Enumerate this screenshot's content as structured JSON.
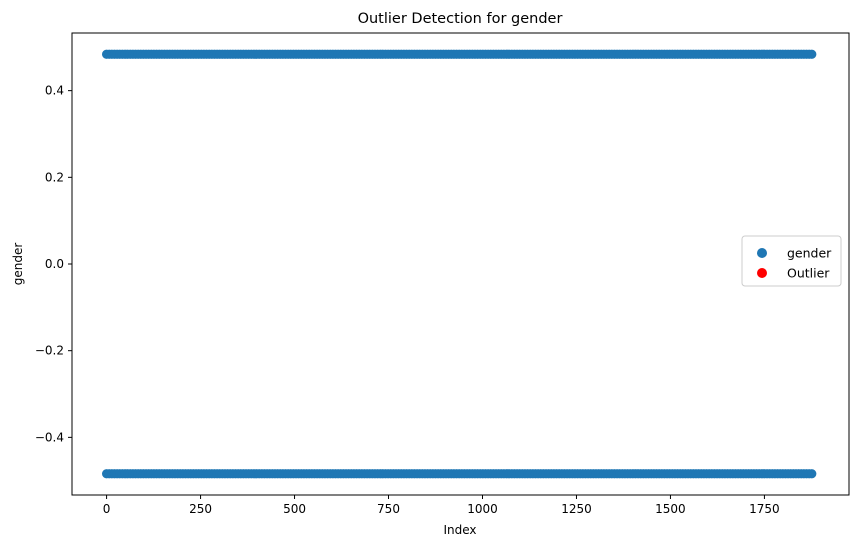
{
  "chart_data": {
    "type": "scatter",
    "title": "Outlier Detection for gender",
    "xlabel": "Index",
    "ylabel": "gender",
    "xlim": [
      -92,
      1975
    ],
    "ylim": [
      -0.533,
      0.533
    ],
    "xticks": [
      0,
      250,
      500,
      750,
      1000,
      1250,
      1500,
      1750
    ],
    "xtick_labels": [
      "0",
      "250",
      "500",
      "750",
      "1000",
      "1250",
      "1500",
      "1750"
    ],
    "yticks": [
      -0.4,
      -0.2,
      0.0,
      0.2,
      0.4
    ],
    "ytick_labels": [
      "−0.4",
      "−0.2",
      "0.0",
      "0.2",
      "0.4"
    ],
    "grid": false,
    "legend_position": "center-right",
    "series": [
      {
        "name": "gender",
        "color": "#1f77b4",
        "x_range": [
          0,
          1882
        ],
        "levels": [
          0.484,
          -0.484
        ],
        "description": "points at every index, each at one of two levels",
        "sample_points": [
          {
            "x": 0,
            "y": -0.484
          },
          {
            "x": 50,
            "y": 0.484
          },
          {
            "x": 100,
            "y": -0.484
          },
          {
            "x": 150,
            "y": 0.484
          },
          {
            "x": 250,
            "y": -0.484
          },
          {
            "x": 500,
            "y": 0.484
          },
          {
            "x": 750,
            "y": -0.484
          },
          {
            "x": 1000,
            "y": 0.484
          },
          {
            "x": 1250,
            "y": -0.484
          },
          {
            "x": 1500,
            "y": 0.484
          },
          {
            "x": 1750,
            "y": -0.484
          },
          {
            "x": 1882,
            "y": 0.484
          }
        ]
      },
      {
        "name": "Outlier",
        "color": "#ff0000",
        "points": []
      }
    ]
  }
}
